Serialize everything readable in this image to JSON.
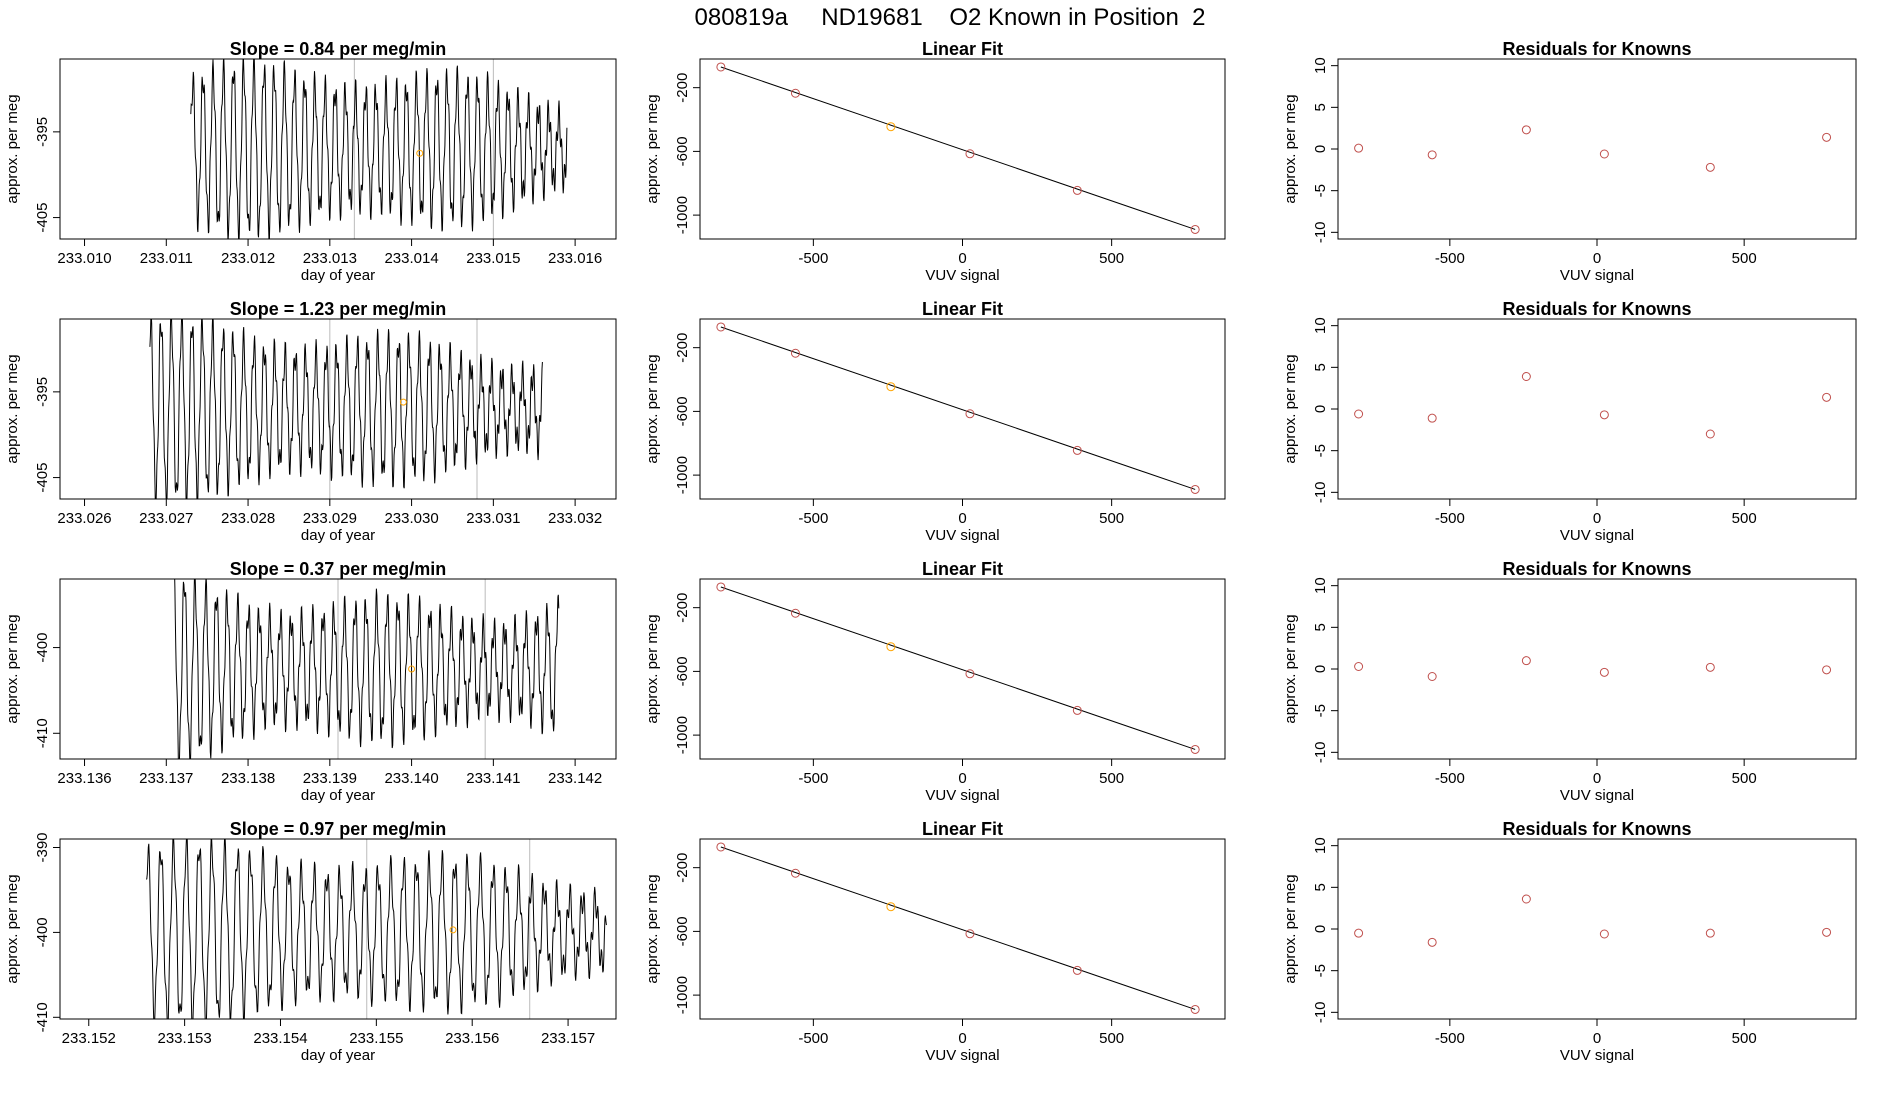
{
  "page_title": "080819a     ND19681    O2 Known in Position  2",
  "colors": {
    "line": "#000000",
    "known_point": "#c0504d",
    "highlight_point": "#ffa500",
    "marker_line": "#bbbbbb"
  },
  "chart_data": [
    {
      "type": "line",
      "title": "Slope =  0.84  per meg/min",
      "xlabel": "day of year",
      "ylabel": "approx. per meg",
      "xlim": [
        233.0097,
        233.0165
      ],
      "ylim": [
        -407.5,
        -386.5
      ],
      "xticks": [
        233.01,
        233.011,
        233.012,
        233.013,
        233.014,
        233.015,
        233.016
      ],
      "xticklabels": [
        "233.010",
        "233.011",
        "233.012",
        "233.013",
        "233.014",
        "233.015",
        "233.016"
      ],
      "yticks": [
        -395,
        -405
      ],
      "yticklabels": [
        "-395",
        "-405"
      ],
      "markers_x": [
        233.0133,
        233.015
      ],
      "highlight": {
        "x": 233.0141,
        "y": -397.5
      },
      "signal": {
        "x_start": 233.0113,
        "x_end": 233.0159,
        "cycles": 37,
        "mean": -397.0,
        "amplitude": 9.0,
        "phase": 0.3
      }
    },
    {
      "type": "scatter",
      "title": "Linear Fit",
      "xlabel": "VUV signal",
      "ylabel": "approx. per meg",
      "xlim": [
        -880,
        880
      ],
      "ylim": [
        -1150,
        -20
      ],
      "xticks": [
        -500,
        0,
        500
      ],
      "xticklabels": [
        "-500",
        "0",
        "500"
      ],
      "yticks": [
        -200,
        -600,
        -1000
      ],
      "yticklabels": [
        "-200",
        "-600",
        "-1000"
      ],
      "x": [
        -810,
        -560,
        -240,
        25,
        385,
        780
      ],
      "y": [
        -70,
        -235,
        -445,
        -615,
        -845,
        -1090
      ],
      "highlight_index": 2,
      "fit": {
        "x": [
          -810,
          780
        ],
        "y": [
          -70,
          -1090
        ]
      }
    },
    {
      "type": "scatter",
      "title": "Residuals for Knowns",
      "xlabel": "VUV signal",
      "ylabel": "approx. per meg",
      "xlim": [
        -880,
        880
      ],
      "ylim": [
        -10.8,
        10.8
      ],
      "xticks": [
        -500,
        0,
        500
      ],
      "xticklabels": [
        "-500",
        "0",
        "500"
      ],
      "yticks": [
        10,
        5,
        0,
        -5,
        -10
      ],
      "yticklabels": [
        "10",
        "5",
        "0",
        "-5",
        "-10"
      ],
      "x": [
        -810,
        -560,
        -240,
        25,
        385,
        780
      ],
      "y": [
        0.1,
        -0.7,
        2.3,
        -0.6,
        -2.2,
        1.4
      ]
    },
    {
      "type": "line",
      "title": "Slope =  1.23  per meg/min",
      "xlabel": "day of year",
      "ylabel": "approx. per meg",
      "xlim": [
        233.0257,
        233.0325
      ],
      "ylim": [
        -407.5,
        -386.5
      ],
      "xticks": [
        233.026,
        233.027,
        233.028,
        233.029,
        233.03,
        233.031,
        233.032
      ],
      "xticklabels": [
        "233.026",
        "233.027",
        "233.028",
        "233.029",
        "233.030",
        "233.031",
        "233.032"
      ],
      "yticks": [
        -395,
        -405
      ],
      "yticklabels": [
        "-395",
        "-405"
      ],
      "markers_x": [
        233.029,
        233.0308
      ],
      "highlight": {
        "x": 233.0299,
        "y": -396.2
      },
      "signal": {
        "x_start": 233.0268,
        "x_end": 233.0316,
        "cycles": 38,
        "mean": -397.0,
        "amplitude": 9.5,
        "phase": 1.1
      }
    },
    {
      "type": "scatter",
      "title": "Linear Fit",
      "xlabel": "VUV signal",
      "ylabel": "approx. per meg",
      "xlim": [
        -880,
        880
      ],
      "ylim": [
        -1150,
        -20
      ],
      "xticks": [
        -500,
        0,
        500
      ],
      "xticklabels": [
        "-500",
        "0",
        "500"
      ],
      "yticks": [
        -200,
        -600,
        -1000
      ],
      "yticklabels": [
        "-200",
        "-600",
        "-1000"
      ],
      "x": [
        -810,
        -560,
        -240,
        25,
        385,
        780
      ],
      "y": [
        -70,
        -235,
        -445,
        -615,
        -845,
        -1090
      ],
      "highlight_index": 2,
      "fit": {
        "x": [
          -810,
          780
        ],
        "y": [
          -70,
          -1090
        ]
      }
    },
    {
      "type": "scatter",
      "title": "Residuals for Knowns",
      "xlabel": "VUV signal",
      "ylabel": "approx. per meg",
      "xlim": [
        -880,
        880
      ],
      "ylim": [
        -10.8,
        10.8
      ],
      "xticks": [
        -500,
        0,
        500
      ],
      "xticklabels": [
        "-500",
        "0",
        "500"
      ],
      "yticks": [
        10,
        5,
        0,
        -5,
        -10
      ],
      "yticklabels": [
        "10",
        "5",
        "0",
        "-5",
        "-10"
      ],
      "x": [
        -810,
        -560,
        -240,
        25,
        385,
        780
      ],
      "y": [
        -0.6,
        -1.1,
        3.9,
        -0.7,
        -3.0,
        1.4
      ]
    },
    {
      "type": "line",
      "title": "Slope =  0.37  per meg/min",
      "xlabel": "day of year",
      "ylabel": "approx. per meg",
      "xlim": [
        233.1357,
        233.1425
      ],
      "ylim": [
        -413,
        -392
      ],
      "xticks": [
        233.136,
        233.137,
        233.138,
        233.139,
        233.14,
        233.141,
        233.142
      ],
      "xticklabels": [
        "233.136",
        "233.137",
        "233.138",
        "233.139",
        "233.140",
        "233.141",
        "233.142"
      ],
      "yticks": [
        -400,
        -410
      ],
      "yticklabels": [
        "-400",
        "-410"
      ],
      "markers_x": [
        233.1391,
        233.1409
      ],
      "highlight": {
        "x": 233.14,
        "y": -402.5
      },
      "signal": {
        "x_start": 233.1371,
        "x_end": 233.1418,
        "cycles": 36,
        "mean": -402.5,
        "amplitude": 10.0,
        "phase": 2.0
      }
    },
    {
      "type": "scatter",
      "title": "Linear Fit",
      "xlabel": "VUV signal",
      "ylabel": "approx. per meg",
      "xlim": [
        -880,
        880
      ],
      "ylim": [
        -1150,
        -20
      ],
      "xticks": [
        -500,
        0,
        500
      ],
      "xticklabels": [
        "-500",
        "0",
        "500"
      ],
      "yticks": [
        -200,
        -600,
        -1000
      ],
      "yticklabels": [
        "-200",
        "-600",
        "-1000"
      ],
      "x": [
        -810,
        -560,
        -240,
        25,
        385,
        780
      ],
      "y": [
        -70,
        -235,
        -445,
        -615,
        -845,
        -1090
      ],
      "highlight_index": 2,
      "fit": {
        "x": [
          -810,
          780
        ],
        "y": [
          -70,
          -1090
        ]
      }
    },
    {
      "type": "scatter",
      "title": "Residuals for Knowns",
      "xlabel": "VUV signal",
      "ylabel": "approx. per meg",
      "xlim": [
        -880,
        880
      ],
      "ylim": [
        -10.8,
        10.8
      ],
      "xticks": [
        -500,
        0,
        500
      ],
      "xticklabels": [
        "-500",
        "0",
        "500"
      ],
      "yticks": [
        10,
        5,
        0,
        -5,
        -10
      ],
      "yticklabels": [
        "10",
        "5",
        "0",
        "-5",
        "-10"
      ],
      "x": [
        -810,
        -560,
        -240,
        25,
        385,
        780
      ],
      "y": [
        0.3,
        -0.9,
        1.0,
        -0.4,
        0.2,
        -0.1
      ]
    },
    {
      "type": "line",
      "title": "Slope =  0.97  per meg/min",
      "xlabel": "day of year",
      "ylabel": "approx. per meg",
      "xlim": [
        233.1517,
        233.1575
      ],
      "ylim": [
        -410.2,
        -389.0
      ],
      "xticks": [
        233.152,
        233.153,
        233.154,
        233.155,
        233.156,
        233.157
      ],
      "xticklabels": [
        "233.152",
        "233.153",
        "233.154",
        "233.155",
        "233.156",
        "233.157"
      ],
      "yticks": [
        -390,
        -400,
        -410
      ],
      "yticklabels": [
        "-390",
        "-400",
        "-410"
      ],
      "markers_x": [
        233.1549,
        233.1566
      ],
      "highlight": {
        "x": 233.1558,
        "y": -399.7
      },
      "signal": {
        "x_start": 233.1526,
        "x_end": 233.1574,
        "cycles": 36,
        "mean": -400.0,
        "amplitude": 9.5,
        "phase": 0.7
      }
    },
    {
      "type": "scatter",
      "title": "Linear Fit",
      "xlabel": "VUV signal",
      "ylabel": "approx. per meg",
      "xlim": [
        -880,
        880
      ],
      "ylim": [
        -1150,
        -20
      ],
      "xticks": [
        -500,
        0,
        500
      ],
      "xticklabels": [
        "-500",
        "0",
        "500"
      ],
      "yticks": [
        -200,
        -600,
        -1000
      ],
      "yticklabels": [
        "-200",
        "-600",
        "-1000"
      ],
      "x": [
        -810,
        -560,
        -240,
        25,
        385,
        780
      ],
      "y": [
        -70,
        -235,
        -445,
        -615,
        -845,
        -1090
      ],
      "highlight_index": 2,
      "fit": {
        "x": [
          -810,
          780
        ],
        "y": [
          -70,
          -1090
        ]
      }
    },
    {
      "type": "scatter",
      "title": "Residuals for Knowns",
      "xlabel": "VUV signal",
      "ylabel": "approx. per meg",
      "xlim": [
        -880,
        880
      ],
      "ylim": [
        -10.8,
        10.8
      ],
      "xticks": [
        -500,
        0,
        500
      ],
      "xticklabels": [
        "-500",
        "0",
        "500"
      ],
      "yticks": [
        10,
        5,
        0,
        -5,
        -10
      ],
      "yticklabels": [
        "10",
        "5",
        "0",
        "-5",
        "-10"
      ],
      "x": [
        -810,
        -560,
        -240,
        25,
        385,
        780
      ],
      "y": [
        -0.5,
        -1.6,
        3.6,
        -0.6,
        -0.5,
        -0.4
      ]
    }
  ]
}
